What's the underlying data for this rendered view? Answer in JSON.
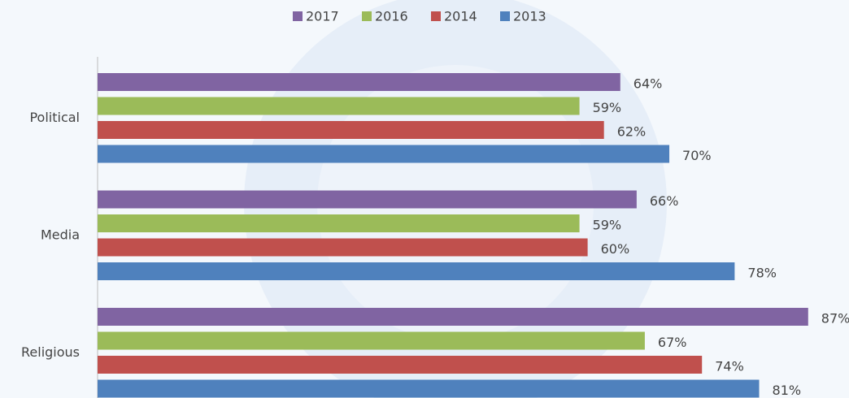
{
  "chart_data": {
    "type": "bar",
    "orientation": "horizontal",
    "categories": [
      "Political",
      "Media",
      "Religious"
    ],
    "series": [
      {
        "name": "2017",
        "color": "#8064a2",
        "values": [
          64,
          66,
          87
        ],
        "value_labels": [
          "64%",
          "66%",
          "87%"
        ]
      },
      {
        "name": "2016",
        "color": "#9bbb59",
        "values": [
          59,
          59,
          67
        ],
        "value_labels": [
          "59%",
          "59%",
          "67%"
        ]
      },
      {
        "name": "2014",
        "color": "#c0504d",
        "values": [
          62,
          60,
          74
        ],
        "value_labels": [
          "62%",
          "60%",
          "74%"
        ]
      },
      {
        "name": "2013",
        "color": "#4f81bd",
        "values": [
          70,
          78,
          81
        ],
        "value_labels": [
          "70%",
          "78%",
          "81%"
        ]
      }
    ],
    "xlim": [
      0,
      92
    ],
    "legend": "top"
  }
}
